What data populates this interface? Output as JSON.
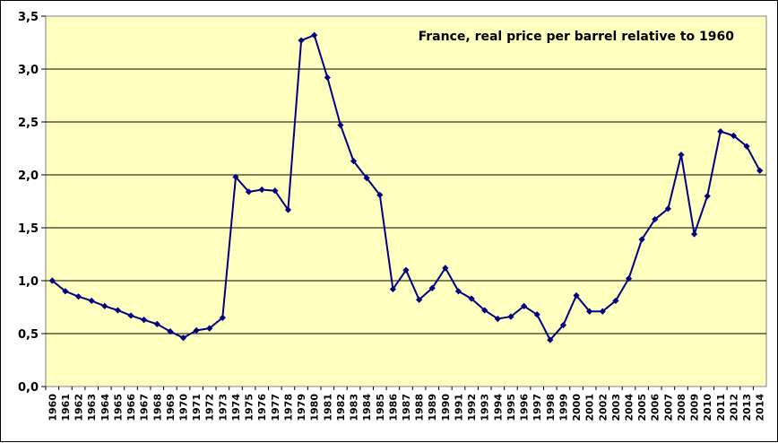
{
  "chart_data": {
    "type": "line",
    "title": "France, real price per barrel relative to 1960",
    "xlabel": "",
    "ylabel": "",
    "ylim": [
      0,
      3.5
    ],
    "y_ticks": [
      "0,0",
      "0,5",
      "1,0",
      "1,5",
      "2,0",
      "2,5",
      "3,0",
      "3,5"
    ],
    "y_tick_values": [
      0,
      0.5,
      1.0,
      1.5,
      2.0,
      2.5,
      3.0,
      3.5
    ],
    "grid": true,
    "legend": "none",
    "colors": {
      "plot_background": "#ffffc0",
      "line": "#000080",
      "grid": "#000000"
    },
    "categories": [
      "1960",
      "1961",
      "1962",
      "1963",
      "1964",
      "1965",
      "1966",
      "1967",
      "1968",
      "1969",
      "1970",
      "1971",
      "1972",
      "1973",
      "1974",
      "1975",
      "1976",
      "1977",
      "1978",
      "1979",
      "1980",
      "1981",
      "1982",
      "1983",
      "1984",
      "1985",
      "1986",
      "1987",
      "1988",
      "1989",
      "1990",
      "1991",
      "1992",
      "1993",
      "1994",
      "1995",
      "1996",
      "1997",
      "1998",
      "1999",
      "2000",
      "2001",
      "2002",
      "2003",
      "2004",
      "2005",
      "2006",
      "2007",
      "2008",
      "2009",
      "2010",
      "2011",
      "2012",
      "2013",
      "2014"
    ],
    "series": [
      {
        "name": "France, real price per barrel relative to 1960",
        "values": [
          1.0,
          0.9,
          0.85,
          0.81,
          0.76,
          0.72,
          0.67,
          0.63,
          0.59,
          0.52,
          0.46,
          0.53,
          0.55,
          0.65,
          1.98,
          1.84,
          1.86,
          1.85,
          1.67,
          3.27,
          3.32,
          2.92,
          2.47,
          2.13,
          1.97,
          1.81,
          0.92,
          1.1,
          0.82,
          0.93,
          1.12,
          0.9,
          0.83,
          0.72,
          0.64,
          0.66,
          0.76,
          0.68,
          0.44,
          0.58,
          0.86,
          0.71,
          0.71,
          0.81,
          1.02,
          1.39,
          1.58,
          1.68,
          2.19,
          1.44,
          1.8,
          2.41,
          2.37,
          2.27,
          2.04
        ]
      }
    ]
  }
}
